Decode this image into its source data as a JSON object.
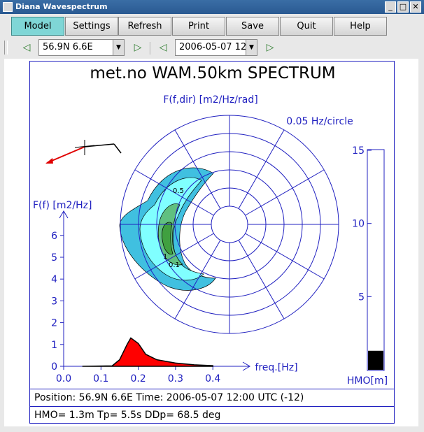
{
  "window": {
    "title": "Diana Wavespectrum"
  },
  "toolbar": {
    "buttons": [
      {
        "label": "Model"
      },
      {
        "label": "Settings"
      },
      {
        "label": "Refresh"
      },
      {
        "label": "Print"
      },
      {
        "label": "Save"
      },
      {
        "label": "Quit"
      },
      {
        "label": "Help"
      }
    ]
  },
  "navbar": {
    "position_value": "56.9N 6.6E",
    "time_value": "2006-05-07 12"
  },
  "plot": {
    "title": "met.no WAM.50km  SPECTRUM",
    "polar_label": "F(f,dir) [m2/Hz/rad]",
    "circle_label": "0.05 Hz/circle",
    "contour_labels": [
      "0.1",
      "0.5",
      "1"
    ],
    "freq_axis_label": "F(f) [m2/Hz]",
    "freq_xlabel": "freq.[Hz]",
    "freq_yticks": [
      "0",
      "1",
      "2",
      "3",
      "4",
      "5",
      "6"
    ],
    "freq_xticks": [
      "0.0",
      "0.1",
      "0.2",
      "0.3",
      "0.4"
    ],
    "hmo_ticks": [
      "15",
      "10",
      "5"
    ],
    "hmo_label": "HMO[m]",
    "status_position": "Position: 56.9N 6.6E   Time: 2006-05-07 12:00 UTC (-12)",
    "status_params": "HMO=  1.3m   Tp=    5.5s   DDp=  68.5 deg"
  },
  "chart_data": {
    "type": "area",
    "xlabel": "freq.[Hz]",
    "ylabel": "F(f) [m2/Hz]",
    "xlim": [
      0,
      0.45
    ],
    "ylim": [
      0,
      7
    ],
    "x": [
      0.05,
      0.13,
      0.15,
      0.17,
      0.18,
      0.2,
      0.22,
      0.25,
      0.3,
      0.35,
      0.4
    ],
    "y": [
      0,
      0.02,
      0.3,
      1.0,
      1.3,
      1.05,
      0.55,
      0.3,
      0.15,
      0.07,
      0.03
    ],
    "hmo_value": 1.3,
    "hmo_range": [
      0,
      15
    ]
  },
  "colors": {
    "frame": "#2020c0",
    "spectrum_fill": "#ff0000",
    "contour_outer": "#40c0e0",
    "contour_mid": "#80ffff",
    "contour_green": "#40a040"
  }
}
